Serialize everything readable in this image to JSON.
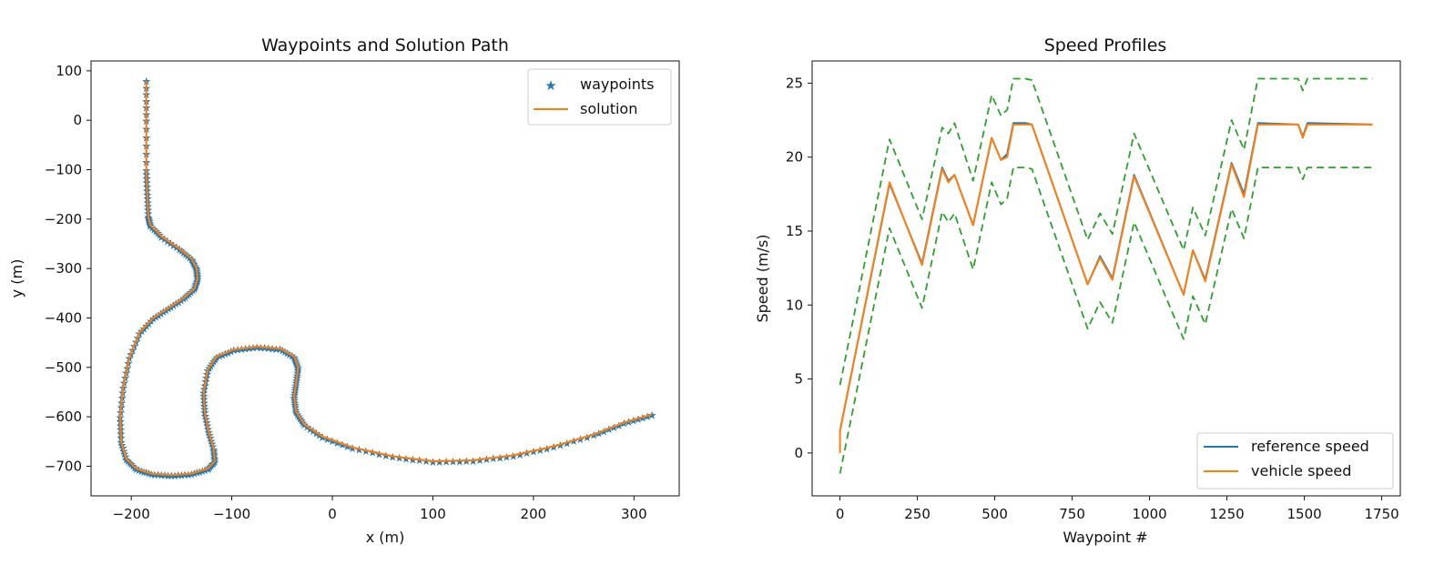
{
  "chart_data": [
    {
      "type": "line",
      "title": "Waypoints and Solution Path",
      "xlabel": "x (m)",
      "ylabel": "y (m)",
      "xlim": [
        -240,
        345
      ],
      "ylim": [
        -760,
        120
      ],
      "xticks": [
        -200,
        -100,
        0,
        100,
        200,
        300
      ],
      "xtick_labels": [
        "−200",
        "−100",
        "0",
        "100",
        "200",
        "300"
      ],
      "yticks": [
        100,
        0,
        -100,
        -200,
        -300,
        -400,
        -500,
        -600,
        -700
      ],
      "ytick_labels": [
        "100",
        "0",
        "−100",
        "−200",
        "−300",
        "−400",
        "−500",
        "−600",
        "−700"
      ],
      "grid": false,
      "legend_position": "top-right",
      "colors": {
        "waypoints": "#1f77b4",
        "solution": "#ff7f0e"
      },
      "series": [
        {
          "name": "waypoints",
          "x": [
            -185,
            -185,
            -185,
            -184,
            -183,
            -181,
            -170,
            -152,
            -140,
            -135,
            -134,
            -137,
            -148,
            -163,
            -178,
            -192,
            -202,
            -208,
            -211,
            -210,
            -205,
            -195,
            -180,
            -160,
            -140,
            -124,
            -117,
            -118,
            -123,
            -127,
            -128,
            -124,
            -115,
            -98,
            -75,
            -52,
            -38,
            -34,
            -36,
            -38,
            -36,
            -28,
            -10,
            20,
            60,
            100,
            140,
            180,
            220,
            260,
            290,
            318
          ],
          "y": [
            80,
            0,
            -100,
            -150,
            -195,
            -212,
            -235,
            -260,
            -280,
            -300,
            -320,
            -340,
            -360,
            -380,
            -400,
            -430,
            -480,
            -540,
            -600,
            -650,
            -685,
            -705,
            -715,
            -718,
            -715,
            -705,
            -690,
            -665,
            -630,
            -590,
            -550,
            -505,
            -478,
            -464,
            -458,
            -462,
            -478,
            -500,
            -530,
            -560,
            -590,
            -615,
            -640,
            -662,
            -680,
            -690,
            -688,
            -678,
            -660,
            -636,
            -612,
            -595
          ]
        },
        {
          "name": "solution",
          "x": [
            -185,
            -185,
            -185,
            -184,
            -183,
            -181,
            -170,
            -152,
            -140,
            -135,
            -134,
            -137,
            -148,
            -163,
            -178,
            -192,
            -202,
            -208,
            -211,
            -210,
            -205,
            -195,
            -180,
            -160,
            -140,
            -124,
            -117,
            -118,
            -123,
            -127,
            -128,
            -124,
            -115,
            -98,
            -75,
            -52,
            -38,
            -34,
            -36,
            -38,
            -36,
            -28,
            -10,
            20,
            60,
            100,
            140,
            180,
            220,
            260,
            290,
            318
          ],
          "y": [
            80,
            0,
            -100,
            -150,
            -195,
            -212,
            -235,
            -260,
            -280,
            -300,
            -320,
            -340,
            -360,
            -380,
            -400,
            -430,
            -480,
            -540,
            -600,
            -650,
            -685,
            -705,
            -715,
            -718,
            -715,
            -705,
            -690,
            -665,
            -630,
            -590,
            -550,
            -505,
            -478,
            -464,
            -458,
            -462,
            -478,
            -500,
            -530,
            -560,
            -590,
            -615,
            -640,
            -662,
            -680,
            -690,
            -688,
            -678,
            -660,
            -636,
            -612,
            -595
          ]
        }
      ]
    },
    {
      "type": "line",
      "title": "Speed Profiles",
      "xlabel": "Waypoint #",
      "ylabel": "Speed (m/s)",
      "xlim": [
        -90,
        1810
      ],
      "ylim": [
        -2.9,
        26.5
      ],
      "xticks": [
        0,
        250,
        500,
        750,
        1000,
        1250,
        1500,
        1750
      ],
      "xtick_labels": [
        "0",
        "250",
        "500",
        "750",
        "1000",
        "1250",
        "1500",
        "1750"
      ],
      "yticks": [
        0,
        5,
        10,
        15,
        20,
        25
      ],
      "ytick_labels": [
        "0",
        "5",
        "10",
        "15",
        "20",
        "25"
      ],
      "grid": false,
      "legend_position": "bottom-right",
      "colors": {
        "reference": "#1f77b4",
        "vehicle": "#ff7f0e",
        "bounds": "#2ca02c"
      },
      "series": [
        {
          "name": "reference speed",
          "x": [
            0,
            160,
            265,
            330,
            350,
            370,
            430,
            490,
            520,
            540,
            560,
            600,
            620,
            800,
            840,
            880,
            950,
            1110,
            1140,
            1180,
            1265,
            1305,
            1350,
            1480,
            1495,
            1510,
            1720
          ],
          "y": [
            1.5,
            18.2,
            12.8,
            19.3,
            18.4,
            18.8,
            15.4,
            21.3,
            19.8,
            20.2,
            22.3,
            22.3,
            22.2,
            11.4,
            13.3,
            11.8,
            18.8,
            10.7,
            13.7,
            11.7,
            19.6,
            17.5,
            22.3,
            22.2,
            21.4,
            22.3,
            22.2
          ]
        },
        {
          "name": "vehicle speed",
          "x": [
            0,
            0,
            160,
            265,
            330,
            350,
            370,
            430,
            490,
            520,
            540,
            560,
            600,
            620,
            800,
            840,
            880,
            950,
            1110,
            1140,
            1180,
            1265,
            1305,
            1350,
            1480,
            1495,
            1510,
            1720
          ],
          "y": [
            0,
            1.5,
            18.3,
            12.7,
            19.2,
            18.3,
            18.8,
            15.4,
            21.3,
            19.8,
            20.0,
            22.2,
            22.2,
            22.2,
            11.4,
            13.2,
            11.7,
            18.7,
            10.7,
            13.7,
            11.6,
            19.5,
            17.3,
            22.2,
            22.2,
            21.3,
            22.2,
            22.2
          ]
        },
        {
          "x": [
            0,
            160,
            265,
            330,
            350,
            370,
            430,
            490,
            520,
            540,
            560,
            600,
            620,
            800,
            840,
            880,
            950,
            1110,
            1140,
            1180,
            1265,
            1305,
            1350,
            1480,
            1495,
            1510,
            1720
          ],
          "y": [
            4.6,
            21.2,
            15.8,
            22.0,
            21.6,
            22.3,
            18.4,
            24.2,
            22.8,
            23.2,
            25.3,
            25.3,
            25.2,
            14.4,
            16.2,
            14.8,
            21.6,
            13.7,
            16.6,
            14.7,
            22.5,
            20.5,
            25.3,
            25.3,
            24.5,
            25.3,
            25.3
          ]
        },
        {
          "x": [
            0,
            160,
            265,
            330,
            350,
            370,
            430,
            490,
            520,
            540,
            560,
            600,
            620,
            800,
            840,
            880,
            950,
            1110,
            1140,
            1180,
            1265,
            1305,
            1350,
            1480,
            1495,
            1510,
            1720
          ],
          "y": [
            -1.4,
            15.2,
            9.8,
            16.3,
            15.6,
            16.2,
            12.4,
            18.3,
            16.8,
            17.2,
            19.3,
            19.3,
            19.2,
            8.4,
            10.2,
            8.8,
            15.6,
            7.7,
            10.6,
            8.7,
            16.5,
            14.5,
            19.3,
            19.3,
            18.5,
            19.3,
            19.3
          ]
        }
      ]
    }
  ]
}
